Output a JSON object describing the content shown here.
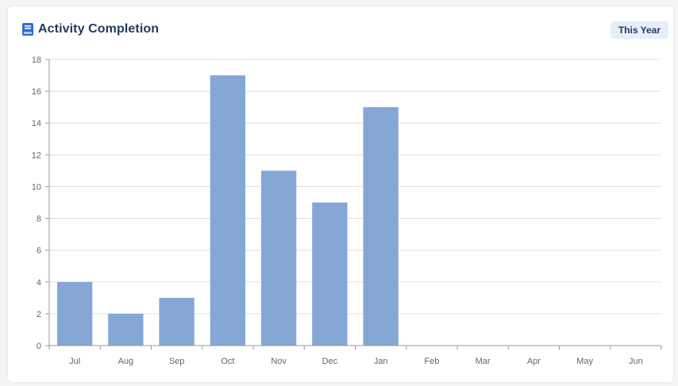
{
  "header": {
    "title": "Activity Completion",
    "period_label": "This Year",
    "icon": "book-icon"
  },
  "colors": {
    "bar": "#85a7d6",
    "title": "#1f3a5f",
    "grid": "#e0e0e0",
    "axis": "#999999",
    "icon": "#2e6fd3"
  },
  "chart_data": {
    "type": "bar",
    "title": "Activity Completion",
    "xlabel": "",
    "ylabel": "",
    "categories": [
      "Jul",
      "Aug",
      "Sep",
      "Oct",
      "Nov",
      "Dec",
      "Jan",
      "Feb",
      "Mar",
      "Apr",
      "May",
      "Jun"
    ],
    "values": [
      4,
      2,
      3,
      17,
      11,
      9,
      15,
      0,
      0,
      0,
      0,
      0
    ],
    "ylim": [
      0,
      18
    ],
    "yticks": [
      0,
      2,
      4,
      6,
      8,
      10,
      12,
      14,
      16,
      18
    ],
    "grid": true,
    "legend": "none"
  }
}
